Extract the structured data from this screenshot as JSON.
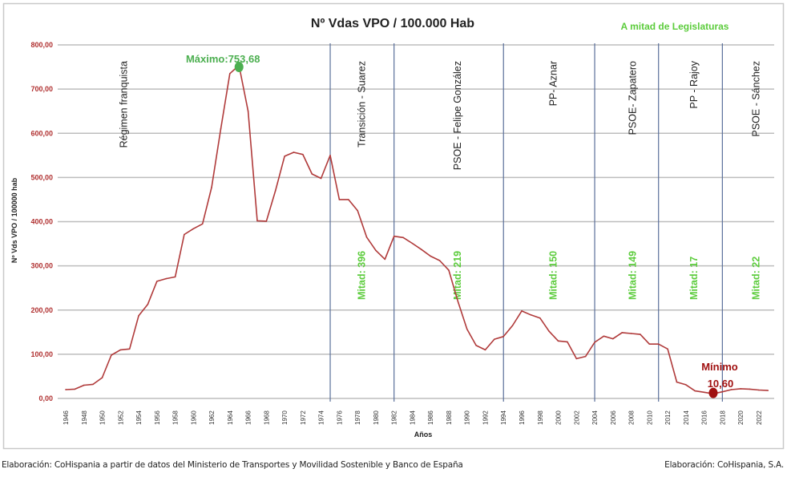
{
  "chart_data": {
    "type": "line",
    "title": "Nº Vdas VPO / 100.000  Hab",
    "subtitle": "A mitad de Legislaturas",
    "xlabel": "Años",
    "ylabel": "Nº Vds VPO / 100000 hab",
    "ylim": [
      0,
      800
    ],
    "yticks": [
      "0,00",
      "100,00",
      "200,00",
      "300,00",
      "400,00",
      "500,00",
      "600,00",
      "700,00",
      "800,00"
    ],
    "xticks": [
      "1946",
      "1948",
      "1950",
      "1952",
      "1954",
      "1956",
      "1958",
      "1960",
      "1962",
      "1964",
      "1966",
      "1968",
      "1970",
      "1972",
      "1974",
      "1976",
      "1978",
      "1980",
      "1982",
      "1984",
      "1986",
      "1988",
      "1990",
      "1992",
      "1994",
      "1996",
      "1998",
      "2000",
      "2002",
      "2004",
      "2006",
      "2008",
      "2010",
      "2012",
      "2014",
      "2016",
      "2018",
      "2020",
      "2022"
    ],
    "grid": "horizontal",
    "x": [
      1946,
      1947,
      1948,
      1949,
      1950,
      1951,
      1952,
      1953,
      1954,
      1955,
      1956,
      1957,
      1958,
      1959,
      1960,
      1961,
      1962,
      1963,
      1964,
      1965,
      1966,
      1967,
      1968,
      1969,
      1970,
      1971,
      1972,
      1973,
      1974,
      1975,
      1976,
      1977,
      1978,
      1979,
      1980,
      1981,
      1982,
      1983,
      1984,
      1985,
      1986,
      1987,
      1988,
      1989,
      1990,
      1991,
      1992,
      1993,
      1994,
      1995,
      1996,
      1997,
      1998,
      1999,
      2000,
      2001,
      2002,
      2003,
      2004,
      2005,
      2006,
      2007,
      2008,
      2009,
      2010,
      2011,
      2012,
      2013,
      2014,
      2015,
      2016,
      2017,
      2018,
      2019,
      2020,
      2021,
      2022,
      2023
    ],
    "values": [
      20,
      21,
      30,
      32,
      47,
      98,
      110,
      112,
      187,
      213,
      265,
      271,
      275,
      371,
      384,
      395,
      478,
      610,
      735,
      753.68,
      650,
      402,
      401,
      470,
      548,
      557,
      552,
      508,
      498,
      550,
      450,
      450,
      425,
      365,
      335,
      315,
      367,
      364,
      351,
      337,
      322,
      312,
      290,
      220,
      157,
      120,
      110,
      134,
      140,
      165,
      198,
      189,
      182,
      152,
      130,
      128,
      90,
      95,
      127,
      141,
      135,
      149,
      147,
      145,
      123,
      123,
      112,
      37,
      31,
      17,
      14,
      10.6,
      15,
      20,
      22,
      21,
      19,
      18
    ],
    "line_color": "#b03a3a",
    "period_dividers": [
      1975,
      1982,
      1994,
      2004,
      2011,
      2018
    ],
    "periods": [
      {
        "label": "Régimen franquista",
        "year": 1952.3,
        "mitad": ""
      },
      {
        "label": "Transición - Suarez",
        "year": 1978.4,
        "mitad": "Mitad: 396"
      },
      {
        "label": "PSOE - Felipe González",
        "year": 1988.9,
        "mitad": "Mitad: 219"
      },
      {
        "label": "PP- Aznar",
        "year": 1999.4,
        "mitad": "Mitad: 150"
      },
      {
        "label": "PSOE- Zapatero",
        "year": 2008.1,
        "mitad": "Mitad: 149"
      },
      {
        "label": "PP - Rajoy",
        "year": 2014.8,
        "mitad": "Mitad: 17"
      },
      {
        "label": "PSOE - Sánchez",
        "year": 2021.6,
        "mitad": "Mitad: 22"
      }
    ],
    "annotations": {
      "max": {
        "label": "Máximo:753,68",
        "year": 1965,
        "value": 753.68,
        "color": "#4caf50"
      },
      "min": {
        "label1": "Mínimo",
        "label2": "10,60",
        "year": 2017,
        "value": 10.6,
        "color": "#a01010"
      }
    },
    "colors": {
      "axis_tick": "#b03030",
      "mitad": "#5ccc3c",
      "divider": "#5a6f9a",
      "grid": "#bdbdbd"
    }
  },
  "footer": {
    "left": "Elaboración: CoHispania a partir de datos del Ministerio de Transportes y Movilidad Sostenible y Banco de España",
    "right": "Elaboración: CoHispania, S.A."
  }
}
